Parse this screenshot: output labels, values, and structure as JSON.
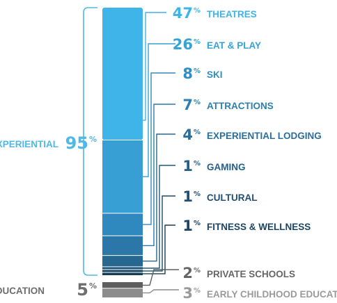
{
  "chart_data": {
    "type": "bar",
    "groups": [
      {
        "name": "EXPERIENTIAL",
        "percent": "95",
        "color": "#4fb8e6",
        "items": [
          {
            "label": "THEATRES",
            "percent": "47",
            "value": 47,
            "color": "#3eb4e8",
            "text_color": "#3eb4e8"
          },
          {
            "label": "EAT & PLAY",
            "percent": "26",
            "value": 26,
            "color": "#379fd4",
            "text_color": "#35a2d8"
          },
          {
            "label": "SKI",
            "percent": "8",
            "value": 8,
            "color": "#3089be",
            "text_color": "#2f8dc2"
          },
          {
            "label": "ATTRACTIONS",
            "percent": "7",
            "value": 7,
            "color": "#2b78a8",
            "text_color": "#2c7fb0"
          },
          {
            "label": "EXPERIENTIAL LODGING",
            "percent": "4",
            "value": 4,
            "color": "#26688f",
            "text_color": "#2a6f9c"
          },
          {
            "label": "GAMING",
            "percent": "1",
            "value": 1,
            "color": "#215879",
            "text_color": "#245f88"
          },
          {
            "label": "CULTURAL",
            "percent": "1",
            "value": 1,
            "color": "#1c4a66",
            "text_color": "#1f4f74"
          },
          {
            "label": "FITNESS & WELLNESS",
            "percent": "1",
            "value": 1,
            "color": "#173d54",
            "text_color": "#1b4564"
          }
        ]
      },
      {
        "name": "EDUCATION",
        "percent": "5",
        "color": "#6e6e6e",
        "items": [
          {
            "label": "PRIVATE SCHOOLS",
            "percent": "2",
            "value": 2,
            "color": "#5e5e5e",
            "text_color": "#666666"
          },
          {
            "label": "EARLY CHILDHOOD EDUCATION",
            "percent": "3",
            "value": 3,
            "color": "#8c8c8c",
            "text_color": "#9a9a9a"
          }
        ]
      }
    ],
    "percent_sign": "%"
  }
}
